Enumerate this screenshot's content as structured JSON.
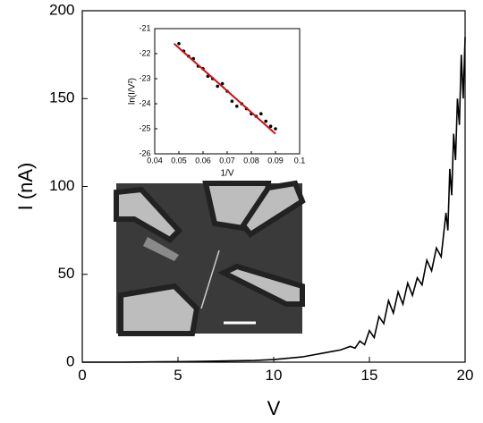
{
  "chart_data": [
    {
      "type": "line",
      "xlabel": "V",
      "ylabel": "I (nA)",
      "x": [
        0,
        1,
        2,
        3,
        4,
        5,
        6,
        7,
        8,
        9,
        10,
        10.5,
        11,
        11.5,
        12,
        12.5,
        13,
        13.5,
        14,
        14.25,
        14.5,
        14.75,
        15,
        15.25,
        15.5,
        15.75,
        16,
        16.25,
        16.5,
        16.75,
        17,
        17.25,
        17.5,
        17.75,
        18,
        18.25,
        18.5,
        18.75,
        19,
        19.1,
        19.2,
        19.3,
        19.4,
        19.5,
        19.6,
        19.7,
        19.8,
        19.9,
        20
      ],
      "series": [
        {
          "color": "#000000",
          "values": [
            0,
            0,
            0,
            0.1,
            0.2,
            0.3,
            0.4,
            0.6,
            0.8,
            1,
            1.5,
            2,
            2.5,
            3,
            4,
            5,
            6,
            7,
            9,
            8,
            12,
            10,
            18,
            14,
            26,
            22,
            35,
            28,
            40,
            33,
            45,
            38,
            48,
            44,
            58,
            52,
            65,
            60,
            85,
            75,
            110,
            95,
            130,
            115,
            150,
            135,
            175,
            150,
            185
          ]
        }
      ],
      "xlim": [
        0,
        20
      ],
      "ylim": [
        0,
        200
      ],
      "xticks": [
        0,
        5,
        10,
        15,
        20
      ],
      "yticks": [
        0,
        50,
        100,
        150,
        200
      ]
    },
    {
      "type": "scatter",
      "xlabel": "1/V",
      "ylabel": "ln(I/V²)",
      "x": [
        0.05,
        0.052,
        0.054,
        0.056,
        0.058,
        0.06,
        0.062,
        0.064,
        0.066,
        0.068,
        0.07,
        0.072,
        0.074,
        0.076,
        0.078,
        0.08,
        0.082,
        0.084,
        0.086,
        0.088,
        0.09
      ],
      "series": [
        {
          "color": "#000000",
          "values": [
            -21.6,
            -21.9,
            -22.1,
            -22.2,
            -22.5,
            -22.6,
            -22.9,
            -23.0,
            -23.3,
            -23.2,
            -23.5,
            -23.9,
            -24.1,
            -24.0,
            -24.2,
            -24.4,
            -24.5,
            -24.4,
            -24.7,
            -24.9,
            -25.0
          ]
        },
        {
          "type": "line",
          "color": "#cc1111",
          "x": [
            0.048,
            0.09
          ],
          "values": [
            -21.6,
            -25.2
          ]
        }
      ],
      "xlim": [
        0.04,
        0.1
      ],
      "ylim": [
        -26,
        -21
      ],
      "xticks": [
        0.04,
        0.05,
        0.06,
        0.07,
        0.08,
        0.09,
        0.1
      ],
      "yticks": [
        -26,
        -25,
        -24,
        -23,
        -22,
        -21
      ]
    }
  ]
}
